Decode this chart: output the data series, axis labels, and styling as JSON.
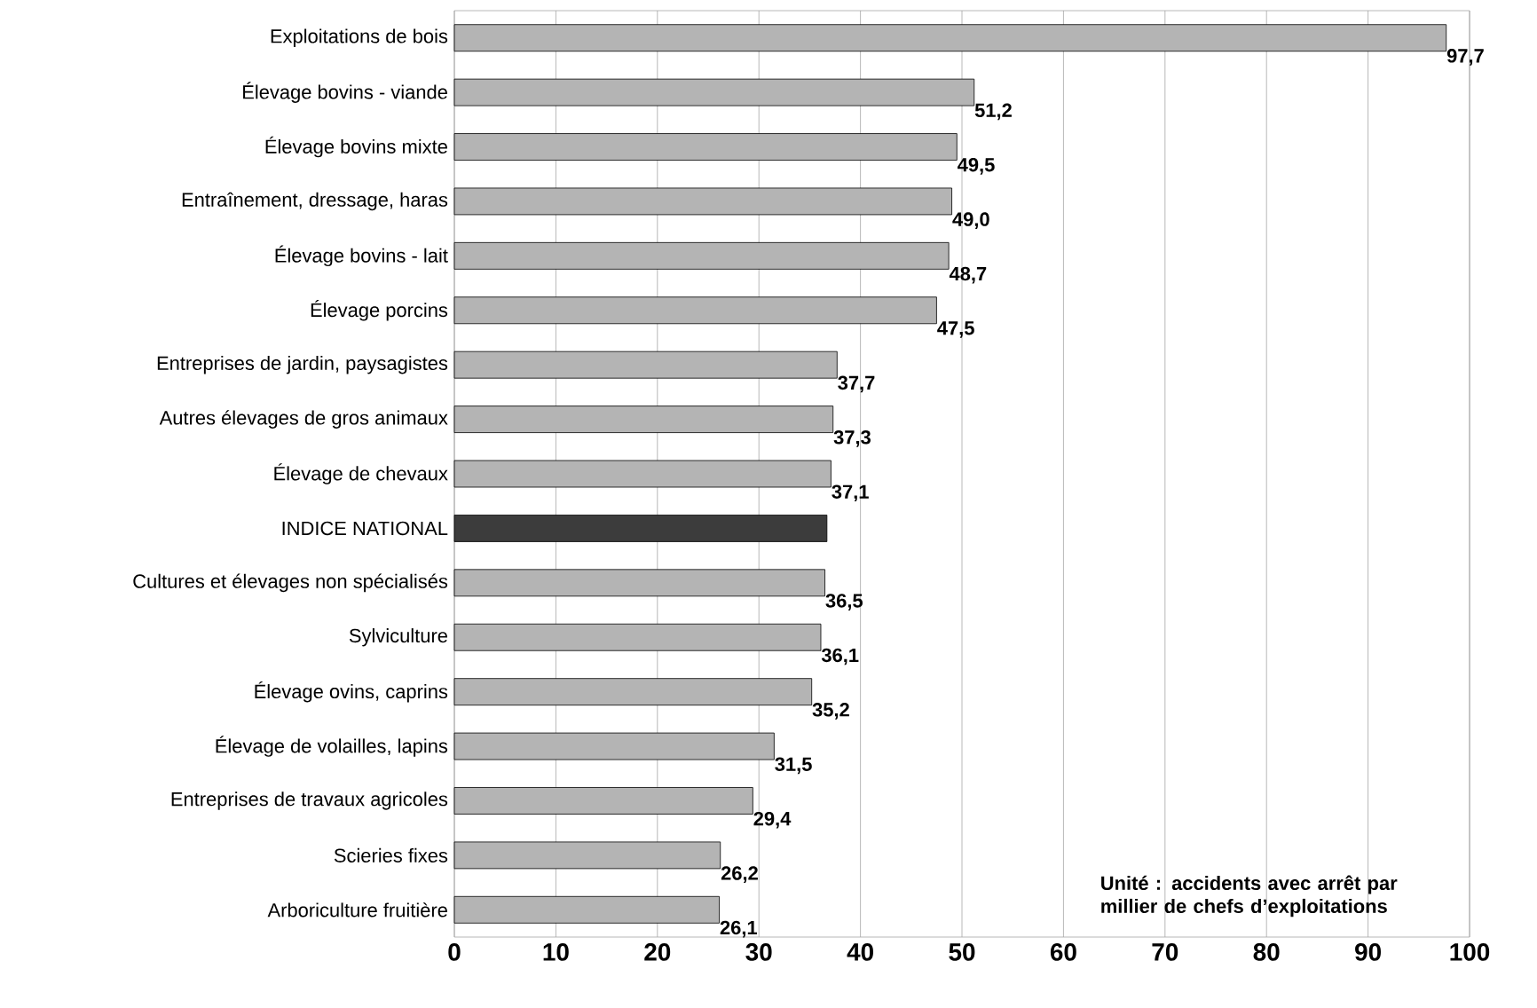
{
  "chart_data": {
    "type": "bar",
    "orientation": "horizontal",
    "categories": [
      "Exploitations de bois",
      "Élevage bovins - viande",
      "Élevage bovins mixte",
      "Entraînement, dressage, haras",
      "Élevage bovins - lait",
      "Élevage porcins",
      "Entreprises de jardin, paysagistes",
      "Autres élevages de gros animaux",
      "Élevage de chevaux",
      "INDICE NATIONAL",
      "Cultures et élevages non spécialisés",
      "Sylviculture",
      "Élevage ovins, caprins",
      "Élevage de volailles, lapins",
      "Entreprises de travaux agricoles",
      "Scieries fixes",
      "Arboriculture fruitière"
    ],
    "values": [
      97.7,
      51.2,
      49.5,
      49.0,
      48.7,
      47.5,
      37.7,
      37.3,
      37.1,
      36.7,
      36.5,
      36.1,
      35.2,
      31.5,
      29.4,
      26.2,
      26.1
    ],
    "value_labels": [
      "97,7",
      "51,2",
      "49,5",
      "49,0",
      "48,7",
      "47,5",
      "37,7",
      "37,3",
      "37,1",
      null,
      "36,5",
      "36,1",
      "35,2",
      "31,5",
      "29,4",
      "26,2",
      "26,1"
    ],
    "colors": [
      "#b4b4b4",
      "#b4b4b4",
      "#b4b4b4",
      "#b4b4b4",
      "#b4b4b4",
      "#b4b4b4",
      "#b4b4b4",
      "#b4b4b4",
      "#b4b4b4",
      "#3c3c3c",
      "#b4b4b4",
      "#b4b4b4",
      "#b4b4b4",
      "#b4b4b4",
      "#b4b4b4",
      "#b4b4b4",
      "#b4b4b4"
    ],
    "xlim": [
      0,
      100
    ],
    "xticks": [
      0,
      10,
      20,
      30,
      40,
      50,
      60,
      70,
      80,
      90,
      100
    ],
    "grid": "x",
    "annotations": [
      "**Unité : accidents avec arrêt par millier de chefs d’exploitations**"
    ]
  }
}
